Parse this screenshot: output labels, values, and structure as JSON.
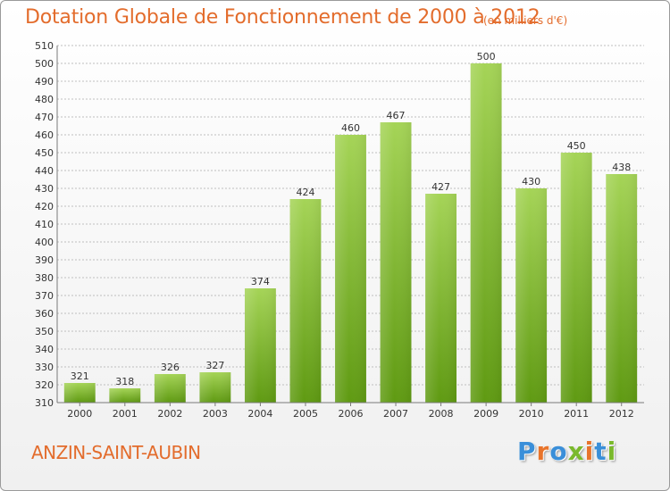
{
  "header": {
    "title": "Dotation Globale de Fonctionnement de 2000 à 2012",
    "unit": "(en milliers d'€)"
  },
  "footer": {
    "commune": "ANZIN-SAINT-AUBIN",
    "logo_letters": [
      "P",
      "r",
      "o",
      "x",
      "i",
      "t",
      "i"
    ],
    "logo_colors": [
      "#3a8fd9",
      "#e8742b",
      "#3a8fd9",
      "#7ab92c",
      "#e8742b",
      "#3a8fd9",
      "#7ab92c"
    ]
  },
  "colors": {
    "title": "#e36c2c",
    "bar_top": "#a5d457",
    "bar_bottom": "#5f9a12",
    "grid": "#bfbfbf"
  },
  "chart_data": {
    "type": "bar",
    "title": "Dotation Globale de Fonctionnement de 2000 à 2012",
    "subtitle": "(en milliers d'€)",
    "categories": [
      "2000",
      "2001",
      "2002",
      "2003",
      "2004",
      "2005",
      "2006",
      "2007",
      "2008",
      "2009",
      "2010",
      "2011",
      "2012"
    ],
    "values": [
      321,
      318,
      326,
      327,
      374,
      424,
      460,
      467,
      427,
      500,
      430,
      450,
      438
    ],
    "ylim": [
      310,
      510
    ],
    "yticks": [
      310,
      320,
      330,
      340,
      350,
      360,
      370,
      380,
      390,
      400,
      410,
      420,
      430,
      440,
      450,
      460,
      470,
      480,
      490,
      500,
      510
    ],
    "grid": true,
    "data_labels": true,
    "xlabel": "",
    "ylabel": ""
  }
}
